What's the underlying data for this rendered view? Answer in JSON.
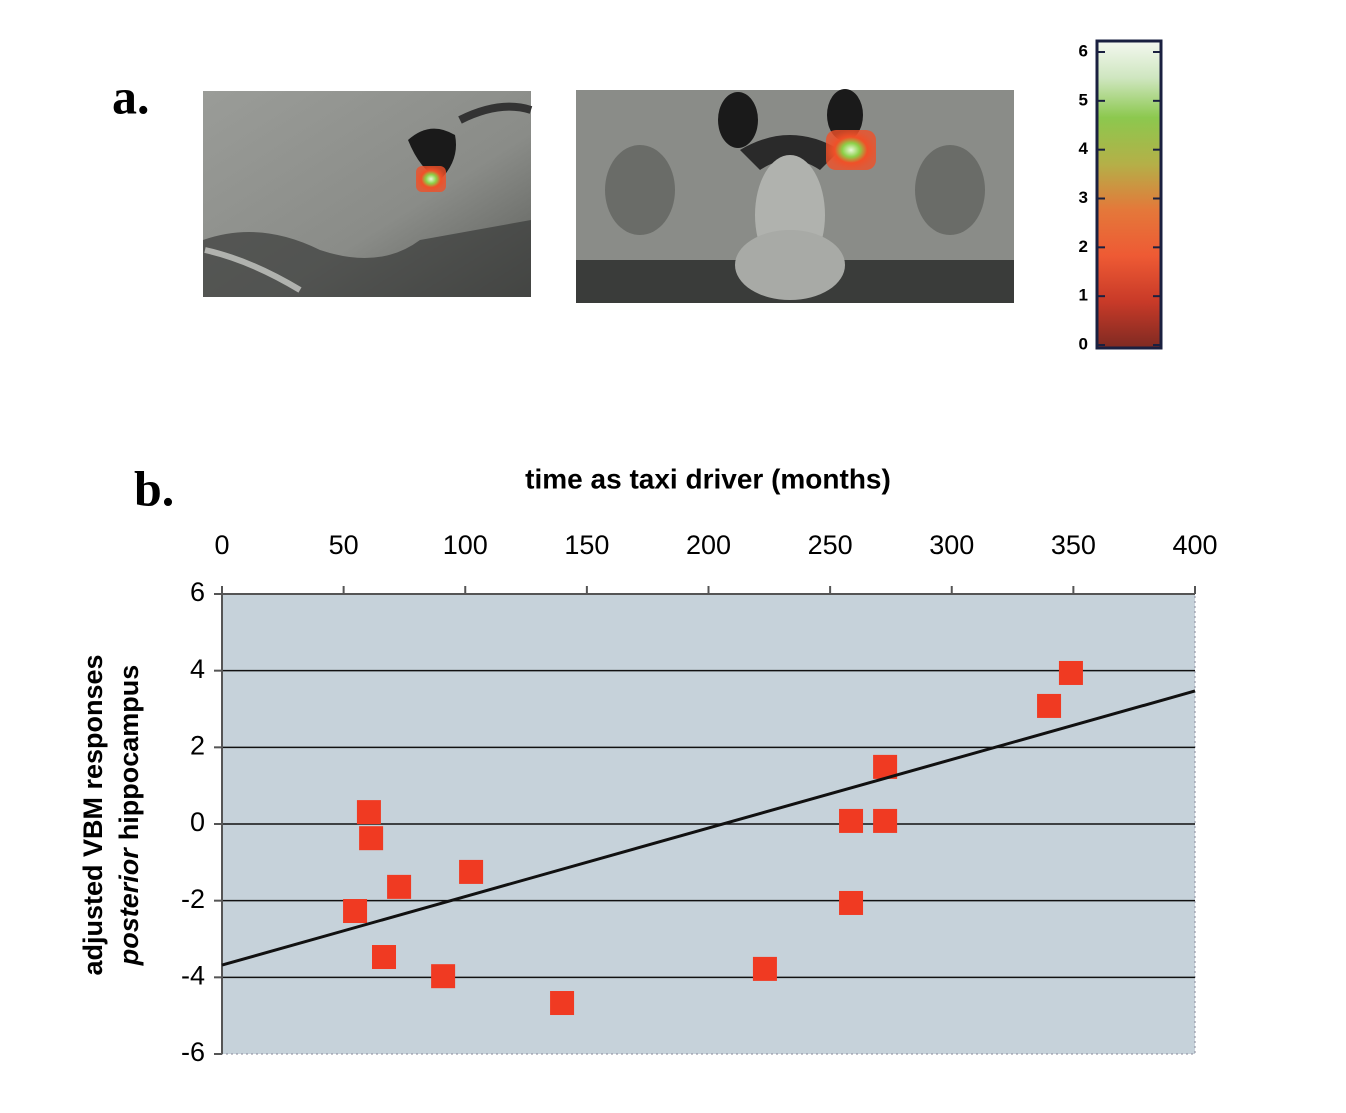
{
  "panel_labels": [
    "a.",
    "b."
  ],
  "colorbar": {
    "ylim": [
      0,
      6
    ],
    "yticks": [
      0,
      1,
      2,
      3,
      4,
      5,
      6
    ]
  },
  "chart_data": {
    "type": "scatter",
    "xlabel": "time as taxi driver (months)",
    "ylabel": "adjusted VBM responses",
    "ylabel_line2": [
      "posterior",
      "hippocampus"
    ],
    "x": [
      60.4,
      61.3,
      72.8,
      54.7,
      66.6,
      90.9,
      102.4,
      139.8,
      223.2,
      258.6,
      258.6,
      272.6,
      272.6,
      340.0,
      349.0
    ],
    "values": [
      0.31,
      -0.37,
      -1.64,
      -2.27,
      -3.47,
      -3.97,
      -1.25,
      -4.67,
      -3.78,
      0.08,
      -2.06,
      1.49,
      0.08,
      3.08,
      3.94
    ],
    "color": "#f03a22",
    "trend_line": {
      "x": [
        0,
        400
      ],
      "values": [
        -3.68,
        3.47
      ]
    },
    "xlim": [
      0,
      400
    ],
    "xticks": [
      0,
      50,
      100,
      150,
      200,
      250,
      300,
      350,
      400
    ],
    "ylim": [
      -6,
      6
    ],
    "yticks": [
      -6,
      -4,
      -2,
      0,
      2,
      4,
      6
    ],
    "grid": true
  }
}
